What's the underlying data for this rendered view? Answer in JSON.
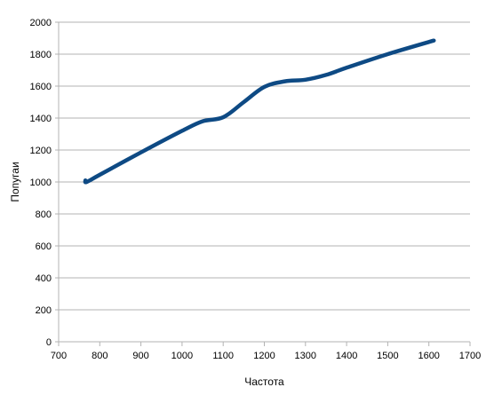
{
  "chart_data": {
    "type": "line",
    "title": "",
    "xlabel": "Частота",
    "ylabel": "Попугаи",
    "xlim": [
      700,
      1700
    ],
    "ylim": [
      0,
      2000
    ],
    "x_ticks": [
      700,
      800,
      900,
      1000,
      1100,
      1200,
      1300,
      1400,
      1500,
      1600,
      1700
    ],
    "y_ticks": [
      0,
      200,
      400,
      600,
      800,
      1000,
      1200,
      1400,
      1600,
      1800,
      2000
    ],
    "grid": "horizontal",
    "legend": "none",
    "series": [
      {
        "color": "#0e4a84",
        "smooth": true,
        "x": [
          765,
          768,
          800,
          900,
          1000,
          1050,
          1100,
          1150,
          1200,
          1250,
          1300,
          1350,
          1400,
          1500,
          1612
        ],
        "y": [
          1010,
          1000,
          1045,
          1185,
          1320,
          1380,
          1405,
          1500,
          1595,
          1630,
          1640,
          1670,
          1715,
          1800,
          1885
        ]
      }
    ]
  }
}
